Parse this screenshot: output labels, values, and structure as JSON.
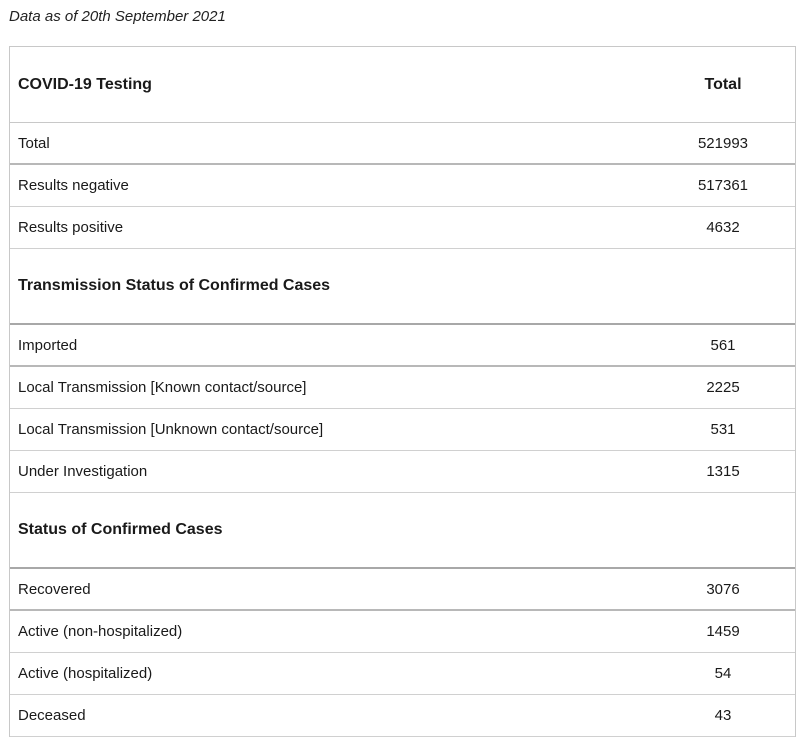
{
  "note": "Data as of 20th September 2021",
  "table": {
    "header": {
      "label": "COVID-19 Testing",
      "value": "Total"
    },
    "testing": [
      {
        "label": "Total",
        "value": "521993"
      },
      {
        "label": "Results negative",
        "value": "517361"
      },
      {
        "label": "Results positive",
        "value": "4632"
      }
    ],
    "transmission_heading": "Transmission Status of Confirmed Cases",
    "transmission": [
      {
        "label": "Imported",
        "value": "561"
      },
      {
        "label": "Local Transmission [Known contact/source]",
        "value": "2225"
      },
      {
        "label": "Local Transmission [Unknown contact/source]",
        "value": "531"
      },
      {
        "label": "Under Investigation",
        "value": "1315"
      }
    ],
    "status_heading": "Status of Confirmed Cases",
    "status": [
      {
        "label": "Recovered",
        "value": "3076"
      },
      {
        "label": "Active (non-hospitalized)",
        "value": "1459"
      },
      {
        "label": "Active (hospitalized)",
        "value": "54"
      },
      {
        "label": "Deceased",
        "value": "43"
      }
    ]
  }
}
